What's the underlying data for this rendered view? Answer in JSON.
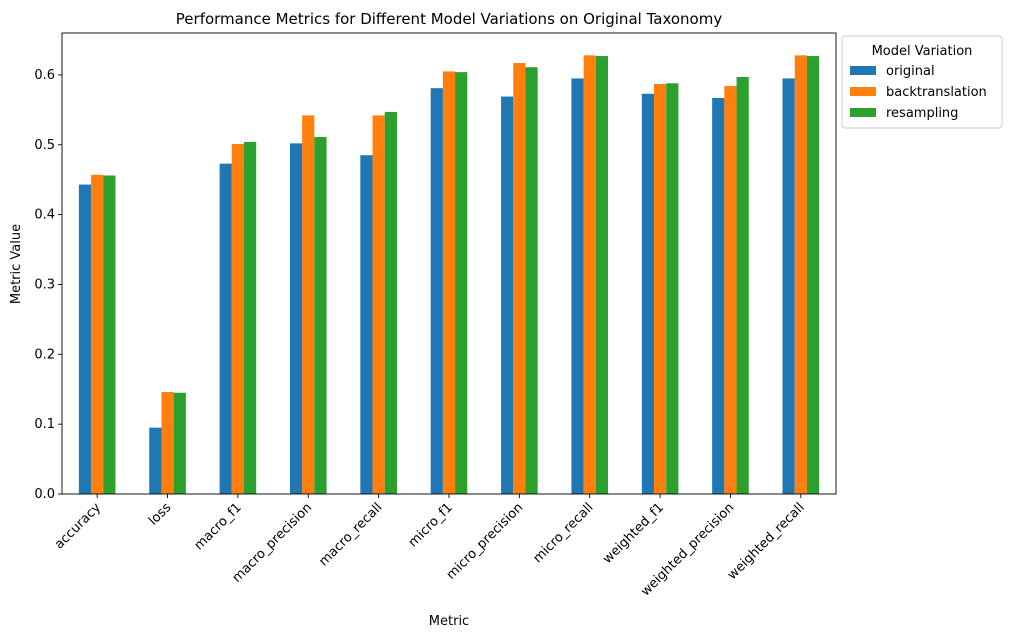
{
  "chart_data": {
    "type": "bar",
    "title": "Performance Metrics for Different Model Variations on Original Taxonomy",
    "xlabel": "Metric",
    "ylabel": "Metric Value",
    "ylim": [
      0,
      0.66
    ],
    "yticks": [
      0.0,
      0.1,
      0.2,
      0.3,
      0.4,
      0.5,
      0.6
    ],
    "ytick_labels": [
      "0.0",
      "0.1",
      "0.2",
      "0.3",
      "0.4",
      "0.5",
      "0.6"
    ],
    "grid": false,
    "legend": {
      "title": "Model Variation",
      "placement": "outside-top-right"
    },
    "categories": [
      "accuracy",
      "loss",
      "macro_f1",
      "macro_precision",
      "macro_recall",
      "micro_f1",
      "micro_precision",
      "micro_recall",
      "weighted_f1",
      "weighted_precision",
      "weighted_recall"
    ],
    "series": [
      {
        "name": "original",
        "color": "#1f77b4",
        "values": [
          0.443,
          0.095,
          0.473,
          0.502,
          0.485,
          0.581,
          0.569,
          0.595,
          0.573,
          0.567,
          0.595
        ]
      },
      {
        "name": "backtranslation",
        "color": "#ff7f0e",
        "values": [
          0.457,
          0.146,
          0.501,
          0.542,
          0.542,
          0.605,
          0.617,
          0.628,
          0.587,
          0.584,
          0.628
        ]
      },
      {
        "name": "resampling",
        "color": "#2ca02c",
        "values": [
          0.456,
          0.145,
          0.504,
          0.511,
          0.547,
          0.604,
          0.611,
          0.627,
          0.588,
          0.597,
          0.627
        ]
      }
    ]
  }
}
